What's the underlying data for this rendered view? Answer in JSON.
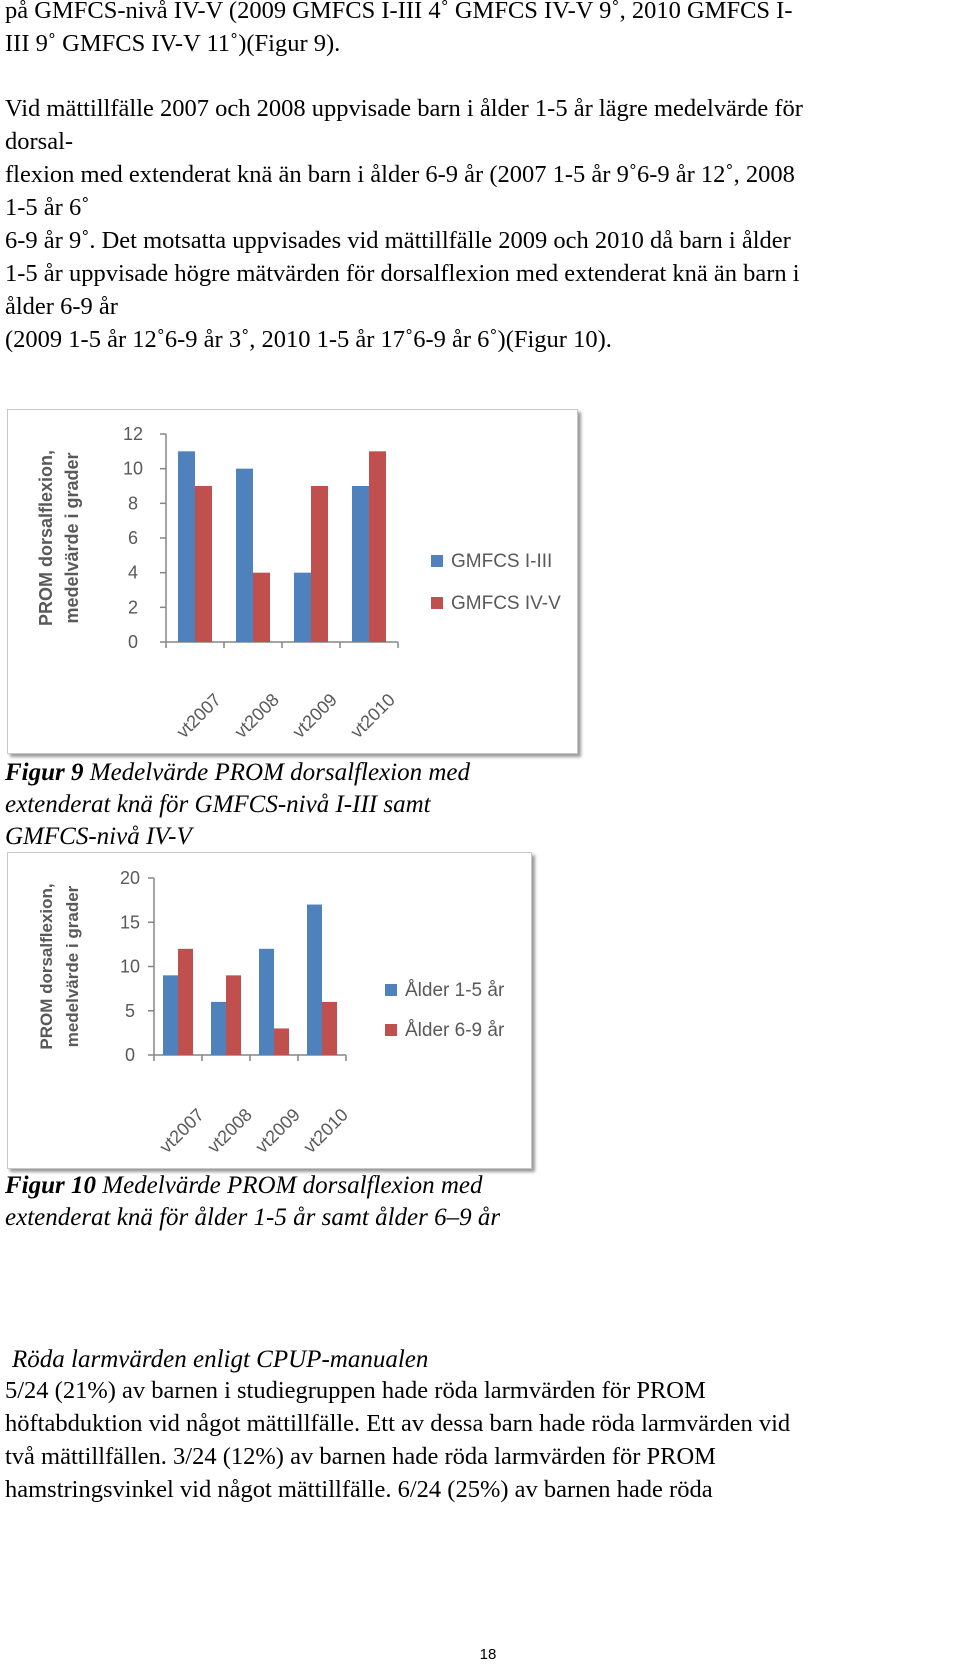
{
  "paragraphs": {
    "top_lines": [
      "på GMFCS-nivå IV-V (2009 GMFCS I-III 4˚ GMFCS IV-V 9˚, 2010 GMFCS I-",
      "III 9˚ GMFCS IV-V 11˚)(Figur 9)."
    ],
    "second_lines": [
      "Vid mättillfälle 2007 och 2008 uppvisade barn i ålder 1-5 år lägre medelvärde för",
      "dorsal-",
      "flexion med extenderat knä än barn i ålder 6-9 år (2007 1-5 år 9˚6-9 år 12˚, 2008",
      "1-5 år 6˚",
      "6-9 år 9˚. Det motsatta uppvisades vid mättillfälle 2009 och 2010 då barn i ålder",
      "1-5 år uppvisade högre mätvärden för dorsalflexion med extenderat knä än barn i",
      "ålder 6-9 år",
      "(2009 1-5 år 12˚6-9 år 3˚, 2010 1-5 år 17˚6-9 år 6˚)(Figur 10)."
    ]
  },
  "colors": {
    "series_blue": "#4f81bd",
    "series_red": "#c0504d",
    "axis": "#868686",
    "chart_text": "#595959"
  },
  "chart_data": [
    {
      "type": "bar",
      "ylabel_lines": [
        "PROM dorsalflexion,",
        "medelvärde i grader"
      ],
      "categories": [
        "vt2007",
        "vt2008",
        "vt2009",
        "vt2010"
      ],
      "series": [
        {
          "name": "GMFCS I-III",
          "values": [
            11,
            10,
            4,
            9
          ]
        },
        {
          "name": "GMFCS IV-V",
          "values": [
            9,
            4,
            9,
            11
          ]
        }
      ],
      "ylim": [
        0,
        12
      ],
      "yticks": [
        "0",
        "2",
        "4",
        "6",
        "8",
        "10",
        "12"
      ],
      "legend": "right",
      "grid": false
    },
    {
      "type": "bar",
      "ylabel_lines": [
        "PROM dorsalflexion,",
        "medelvärde i grader"
      ],
      "categories": [
        "vt2007",
        "vt2008",
        "vt2009",
        "vt2010"
      ],
      "series": [
        {
          "name": "Ålder 1-5 år",
          "values": [
            9,
            6,
            12,
            17
          ]
        },
        {
          "name": "Ålder 6-9 år",
          "values": [
            12,
            9,
            3,
            6
          ]
        }
      ],
      "ylim": [
        0,
        20
      ],
      "yticks": [
        "0",
        "5",
        "10",
        "15",
        "20"
      ],
      "legend": "right",
      "grid": false
    }
  ],
  "captions": {
    "fig9": {
      "label": "Figur 9",
      "text_line1": "   Medelvärde PROM dorsalflexion med",
      "lines": [
        "extenderat knä för GMFCS-nivå I-III samt",
        "GMFCS-nivå IV-V"
      ]
    },
    "fig10": {
      "label": "Figur 10",
      "text_line1": " Medelvärde PROM dorsalflexion med",
      "lines": [
        "extenderat knä för ålder 1-5 år samt ålder 6–9 år"
      ]
    }
  },
  "section": {
    "heading": "Röda larmvärden enligt CPUP-manualen",
    "lines": [
      "5/24 (21%) av barnen i studiegruppen hade röda larmvärden för PROM",
      "höftabduktion vid något mättillfälle. Ett av dessa barn hade röda larmvärden vid",
      "två mättillfällen. 3/24 (12%) av barnen hade röda larmvärden för PROM",
      "hamstringsvinkel vid något mättillfälle. 6/24 (25%) av barnen hade röda"
    ]
  },
  "page_number": "18"
}
